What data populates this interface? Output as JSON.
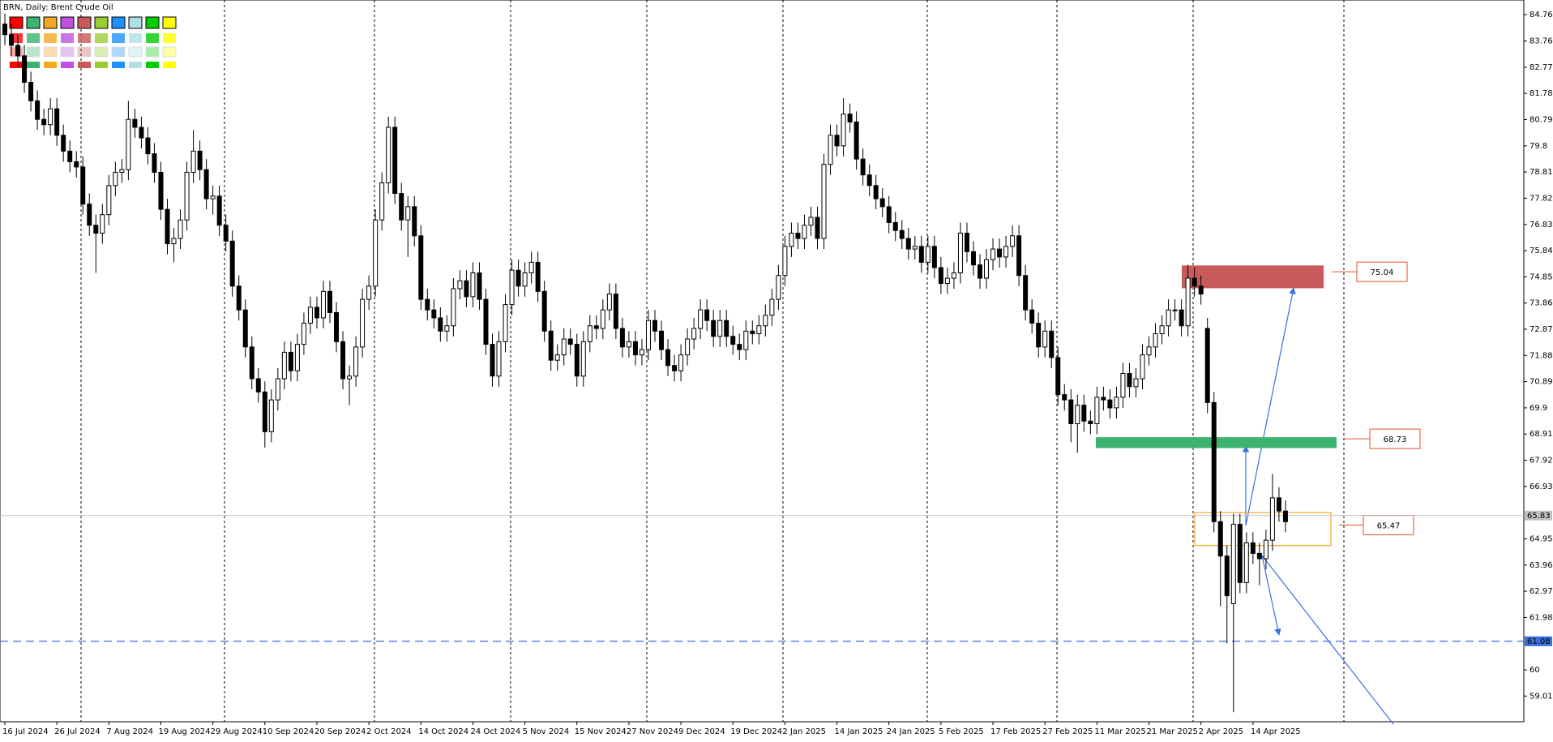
{
  "chart_data": {
    "type": "candlestick",
    "title": "BRN, Daily:  Brent Crude Oil",
    "up_color": "#ffffff",
    "down_color": "#000000",
    "categories": [
      "16 Jul 2024",
      null,
      null,
      null,
      null,
      null,
      null,
      null,
      "26 Jul 2024",
      null,
      null,
      null,
      null,
      null,
      null,
      null,
      "7 Aug 2024",
      null,
      null,
      null,
      null,
      null,
      null,
      null,
      "19 Aug 2024",
      null,
      null,
      null,
      null,
      null,
      null,
      null,
      "29 Aug 2024",
      null,
      null,
      null,
      null,
      null,
      null,
      null,
      "10 Sep 2024",
      null,
      null,
      null,
      null,
      null,
      null,
      null,
      "20 Sep 2024",
      null,
      null,
      null,
      null,
      null,
      null,
      null,
      "2 Oct 2024",
      null,
      null,
      null,
      null,
      null,
      null,
      null,
      "14 Oct 2024",
      null,
      null,
      null,
      null,
      null,
      null,
      null,
      "24 Oct 2024",
      null,
      null,
      null,
      null,
      null,
      null,
      null,
      "5 Nov 2024",
      null,
      null,
      null,
      null,
      null,
      null,
      null,
      "15 Nov 2024",
      null,
      null,
      null,
      null,
      null,
      null,
      null,
      "27 Nov 2024",
      null,
      null,
      null,
      null,
      null,
      null,
      null,
      "9 Dec 2024",
      null,
      null,
      null,
      null,
      null,
      null,
      null,
      "19 Dec 2024",
      null,
      null,
      null,
      null,
      null,
      null,
      null,
      "2 Jan 2025",
      null,
      null,
      null,
      null,
      null,
      null,
      null,
      "14 Jan 2025",
      null,
      null,
      null,
      null,
      null,
      null,
      null,
      "24 Jan 2025",
      null,
      null,
      null,
      null,
      null,
      null,
      null,
      "5 Feb 2025",
      null,
      null,
      null,
      null,
      null,
      null,
      null,
      "17 Feb 2025",
      null,
      null,
      null,
      null,
      null,
      null,
      null,
      "27 Feb 2025",
      null,
      null,
      null,
      null,
      null,
      null,
      null,
      "11 Mar 2025",
      null,
      null,
      null,
      null,
      null,
      null,
      null,
      "21 Mar 2025",
      null,
      null,
      null,
      null,
      null,
      null,
      null,
      "2 Apr 2025",
      null,
      null,
      null,
      null,
      null,
      null,
      null,
      "14 Apr 2025",
      null,
      null,
      null,
      null,
      null
    ],
    "open": [
      84.4,
      84.0,
      83.6,
      83.2,
      82.2,
      81.5,
      80.8,
      80.6,
      81.2,
      80.2,
      79.6,
      79.2,
      79.0,
      77.6,
      76.8,
      76.5,
      77.2,
      78.3,
      78.8,
      78.9,
      80.8,
      80.5,
      80.1,
      79.5,
      78.8,
      77.4,
      76.1,
      76.3,
      77.0,
      78.8,
      79.6,
      78.9,
      77.8,
      77.9,
      76.8,
      76.2,
      74.5,
      73.6,
      72.2,
      71.0,
      70.5,
      69.0,
      70.2,
      71.0,
      72.0,
      71.3,
      72.3,
      73.1,
      73.7,
      73.3,
      74.3,
      73.5,
      72.4,
      71.0,
      71.1,
      72.2,
      74.0,
      74.5,
      77.0,
      78.4,
      80.5,
      78.0,
      77.0,
      77.5,
      76.4,
      74.0,
      73.6,
      73.3,
      72.8,
      73.0,
      74.4,
      74.7,
      74.1,
      75.0,
      74.0,
      72.3,
      71.1,
      72.4,
      73.8,
      75.1,
      74.5,
      75.0,
      75.4,
      74.3,
      72.8,
      71.7,
      71.9,
      72.5,
      72.3,
      71.1,
      72.4,
      73.0,
      72.9,
      73.6,
      74.2,
      72.9,
      72.2,
      72.4,
      71.9,
      72.1,
      73.2,
      72.8,
      72.1,
      71.5,
      71.3,
      71.9,
      72.5,
      72.9,
      73.6,
      73.2,
      72.6,
      73.2,
      72.6,
      72.3,
      72.1,
      72.8,
      72.7,
      73.0,
      73.4,
      74.0,
      74.9,
      76.0,
      76.5,
      76.3,
      76.8,
      77.1,
      76.3,
      79.1,
      80.2,
      79.8,
      81.0,
      80.7,
      79.3,
      78.7,
      78.3,
      77.8,
      77.5,
      76.9,
      76.6,
      76.3,
      75.9,
      76.0,
      75.4,
      76.0,
      75.2,
      74.6,
      74.8,
      75.0,
      76.5,
      75.8,
      75.3,
      74.8,
      75.5,
      75.9,
      75.6,
      76.0,
      76.4,
      74.9,
      73.6,
      73.1,
      72.2,
      72.8,
      71.8,
      70.4,
      70.2,
      69.3,
      70.0,
      69.4,
      69.3,
      70.3,
      70.2,
      69.9,
      70.3,
      71.2,
      70.7,
      71.0,
      71.9,
      72.2,
      72.7,
      73.0,
      73.6,
      73.6,
      73.0,
      74.8,
      74.5,
      72.9,
      70.1,
      65.6,
      64.3,
      62.5,
      65.5,
      63.3,
      64.8,
      64.4,
      64.2,
      64.9,
      66.5,
      66.0
    ],
    "high": [
      84.8,
      84.4,
      84.0,
      83.6,
      82.6,
      81.9,
      81.2,
      81.6,
      81.6,
      80.6,
      80.0,
      79.6,
      79.4,
      78.0,
      77.2,
      77.6,
      78.7,
      79.2,
      79.3,
      81.5,
      81.2,
      80.9,
      80.5,
      79.9,
      79.2,
      77.8,
      76.7,
      77.4,
      79.2,
      80.4,
      80.0,
      79.3,
      78.3,
      78.3,
      77.2,
      76.6,
      74.9,
      74.0,
      72.6,
      71.4,
      70.9,
      70.6,
      71.4,
      72.4,
      72.4,
      72.7,
      73.5,
      74.1,
      74.1,
      74.7,
      74.7,
      73.9,
      72.8,
      71.5,
      72.6,
      74.4,
      74.9,
      77.4,
      78.8,
      80.9,
      80.9,
      78.4,
      77.9,
      77.9,
      76.8,
      74.4,
      74.0,
      73.7,
      73.4,
      74.8,
      75.1,
      75.1,
      75.4,
      75.4,
      74.4,
      72.7,
      72.8,
      74.2,
      75.5,
      75.5,
      75.4,
      75.8,
      75.8,
      74.7,
      73.2,
      72.3,
      72.9,
      72.9,
      72.7,
      72.8,
      73.4,
      73.4,
      74.0,
      74.6,
      74.6,
      73.3,
      72.8,
      72.8,
      72.5,
      73.6,
      73.6,
      73.2,
      72.5,
      71.9,
      72.3,
      72.9,
      73.3,
      74.0,
      74.0,
      73.6,
      73.6,
      73.6,
      73.0,
      72.7,
      73.2,
      73.2,
      73.4,
      73.8,
      74.4,
      75.3,
      76.4,
      76.9,
      76.9,
      77.2,
      77.5,
      77.5,
      79.5,
      80.6,
      80.6,
      81.6,
      81.4,
      81.1,
      79.7,
      79.1,
      78.7,
      78.2,
      77.9,
      77.3,
      77.0,
      76.7,
      76.4,
      76.4,
      76.4,
      76.4,
      75.6,
      75.2,
      75.4,
      76.9,
      76.9,
      76.2,
      75.7,
      75.9,
      76.3,
      76.3,
      76.4,
      76.8,
      76.8,
      75.3,
      74.0,
      73.5,
      73.2,
      73.2,
      72.2,
      70.8,
      70.6,
      70.4,
      70.4,
      69.8,
      70.7,
      70.7,
      70.6,
      70.7,
      71.6,
      71.6,
      71.4,
      72.3,
      72.6,
      73.1,
      73.4,
      74.0,
      74.0,
      74.0,
      75.3,
      75.2,
      74.9,
      73.3,
      70.5,
      66.0,
      64.7,
      65.9,
      65.9,
      65.2,
      65.2,
      64.8,
      65.3,
      67.4,
      66.9,
      66.4
    ],
    "low": [
      83.6,
      83.2,
      82.8,
      81.8,
      81.1,
      80.4,
      80.2,
      80.2,
      79.8,
      79.2,
      78.8,
      78.6,
      77.2,
      76.4,
      75.0,
      76.1,
      76.8,
      77.9,
      78.4,
      78.5,
      80.1,
      79.7,
      79.1,
      78.4,
      77.0,
      75.7,
      75.4,
      75.9,
      76.6,
      78.4,
      78.5,
      77.4,
      77.2,
      76.4,
      75.8,
      74.1,
      73.2,
      71.8,
      70.6,
      70.1,
      68.4,
      68.6,
      69.8,
      70.6,
      70.9,
      70.9,
      71.9,
      72.7,
      72.9,
      72.9,
      73.1,
      72.0,
      70.6,
      70.0,
      70.7,
      71.8,
      73.6,
      74.1,
      76.6,
      78.0,
      77.6,
      76.6,
      75.6,
      76.0,
      73.6,
      73.2,
      72.9,
      72.4,
      72.4,
      72.6,
      74.0,
      73.7,
      73.7,
      73.6,
      71.9,
      70.7,
      70.7,
      72.0,
      73.4,
      74.1,
      74.1,
      74.6,
      73.9,
      72.4,
      71.3,
      71.3,
      71.5,
      71.9,
      70.7,
      70.7,
      72.0,
      72.5,
      72.5,
      73.2,
      72.5,
      71.8,
      71.8,
      71.5,
      71.5,
      71.7,
      72.4,
      71.7,
      71.1,
      70.9,
      70.9,
      71.5,
      72.1,
      72.5,
      72.8,
      72.2,
      72.2,
      72.2,
      71.9,
      71.7,
      71.7,
      72.3,
      72.3,
      72.6,
      73.0,
      73.6,
      74.5,
      75.6,
      75.9,
      75.9,
      76.4,
      75.9,
      75.9,
      78.7,
      79.4,
      79.4,
      80.3,
      78.9,
      78.3,
      77.9,
      77.4,
      77.1,
      76.5,
      76.2,
      75.9,
      75.5,
      75.5,
      75.0,
      75.0,
      74.8,
      74.2,
      74.2,
      74.4,
      74.6,
      75.4,
      74.9,
      74.4,
      74.4,
      75.1,
      75.2,
      75.2,
      75.6,
      74.5,
      73.2,
      72.7,
      71.8,
      71.8,
      71.4,
      70.0,
      69.8,
      68.6,
      68.2,
      69.0,
      68.9,
      68.9,
      69.8,
      69.5,
      69.5,
      69.9,
      70.3,
      70.3,
      70.6,
      71.5,
      71.8,
      72.3,
      72.6,
      73.2,
      72.6,
      72.6,
      74.1,
      73.8,
      69.7,
      65.2,
      62.4,
      61.0,
      58.4,
      62.9,
      62.9,
      64.0,
      63.2,
      63.8,
      64.5,
      65.6,
      65.2
    ],
    "close": [
      84.0,
      83.6,
      83.2,
      82.2,
      81.5,
      80.8,
      80.6,
      81.2,
      80.2,
      79.6,
      79.2,
      79.0,
      77.6,
      76.8,
      76.5,
      77.2,
      78.3,
      78.8,
      78.9,
      80.8,
      80.5,
      80.1,
      79.5,
      78.8,
      77.4,
      76.1,
      76.3,
      77.0,
      78.8,
      79.6,
      78.9,
      77.8,
      77.9,
      76.8,
      76.2,
      74.5,
      73.6,
      72.2,
      71.0,
      70.5,
      69.0,
      70.2,
      71.0,
      72.0,
      71.3,
      72.3,
      73.1,
      73.7,
      73.3,
      74.3,
      73.5,
      72.4,
      71.0,
      71.1,
      72.2,
      74.0,
      74.5,
      77.0,
      78.4,
      80.5,
      78.0,
      77.0,
      77.5,
      76.4,
      74.0,
      73.6,
      73.3,
      72.8,
      73.0,
      74.4,
      74.7,
      74.1,
      75.0,
      74.0,
      72.3,
      71.1,
      72.4,
      73.8,
      75.1,
      74.5,
      75.0,
      75.4,
      74.3,
      72.8,
      71.7,
      71.9,
      72.5,
      72.3,
      71.1,
      72.4,
      73.0,
      72.9,
      73.6,
      74.2,
      72.9,
      72.2,
      72.4,
      71.9,
      72.1,
      73.2,
      72.8,
      72.1,
      71.5,
      71.3,
      71.9,
      72.5,
      72.9,
      73.6,
      73.2,
      72.6,
      73.2,
      72.6,
      72.3,
      72.1,
      72.8,
      72.7,
      73.0,
      73.4,
      74.0,
      74.9,
      76.0,
      76.5,
      76.3,
      76.8,
      77.1,
      76.3,
      79.1,
      80.2,
      79.8,
      81.0,
      80.7,
      79.3,
      78.7,
      78.3,
      77.8,
      77.5,
      76.9,
      76.6,
      76.3,
      75.9,
      76.0,
      75.4,
      76.0,
      75.2,
      74.6,
      74.8,
      75.0,
      76.5,
      75.8,
      75.3,
      74.8,
      75.5,
      75.9,
      75.6,
      76.0,
      76.4,
      74.9,
      73.6,
      73.1,
      72.2,
      72.8,
      71.8,
      70.4,
      70.2,
      69.3,
      70.0,
      69.4,
      69.3,
      70.3,
      70.2,
      69.9,
      70.3,
      71.2,
      70.7,
      71.0,
      71.9,
      72.2,
      72.7,
      73.0,
      73.6,
      73.6,
      73.0,
      74.8,
      74.5,
      74.2,
      70.1,
      65.6,
      64.3,
      62.8,
      65.5,
      63.3,
      64.8,
      64.4,
      64.2,
      64.9,
      66.5,
      66.0,
      65.6
    ],
    "ylim": [
      58.04,
      85.31
    ],
    "yticks": [
      84.76,
      83.76,
      82.77,
      81.78,
      80.79,
      79.8,
      78.81,
      77.82,
      76.83,
      75.84,
      74.85,
      73.86,
      72.87,
      71.88,
      70.89,
      69.9,
      68.91,
      67.92,
      66.93,
      64.95,
      63.96,
      62.97,
      61.98,
      60.0,
      59.01
    ],
    "last_price": 65.83,
    "support_line": 61.08,
    "zones": [
      {
        "value": 75.04,
        "high": 75.28,
        "low": 74.42,
        "color": "#c85a5a"
      },
      {
        "value": 68.73,
        "high": 68.79,
        "low": 68.38,
        "color": "#3cb371"
      },
      {
        "value": 65.47,
        "high": 65.94,
        "low": 64.7,
        "color": "#f5a623"
      }
    ]
  }
}
